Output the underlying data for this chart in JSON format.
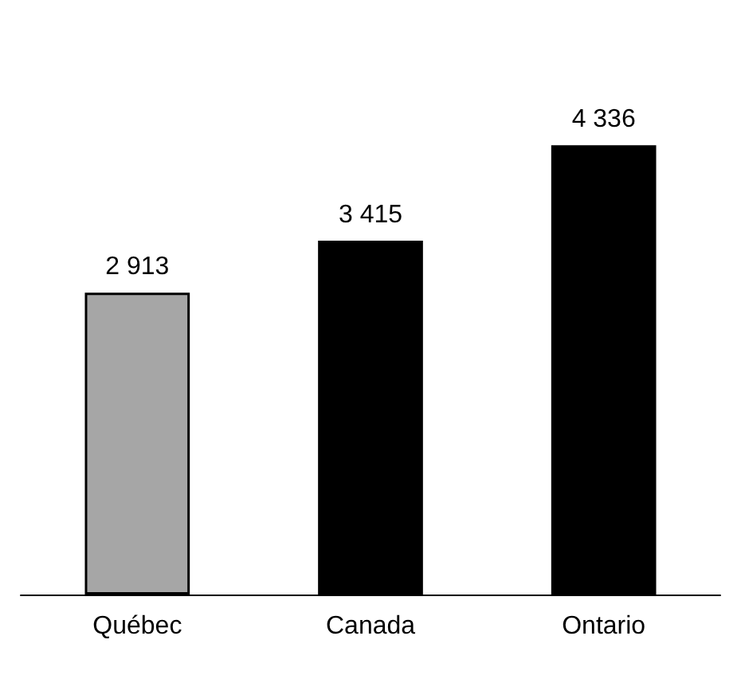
{
  "chart_data": {
    "type": "bar",
    "categories": [
      "Québec",
      "Canada",
      "Ontario"
    ],
    "values": [
      2913,
      3415,
      4336
    ],
    "colors": [
      "#a6a6a6",
      "#000000",
      "#000000"
    ],
    "value_labels": [
      "2 913",
      "3 415",
      "4 336"
    ]
  }
}
